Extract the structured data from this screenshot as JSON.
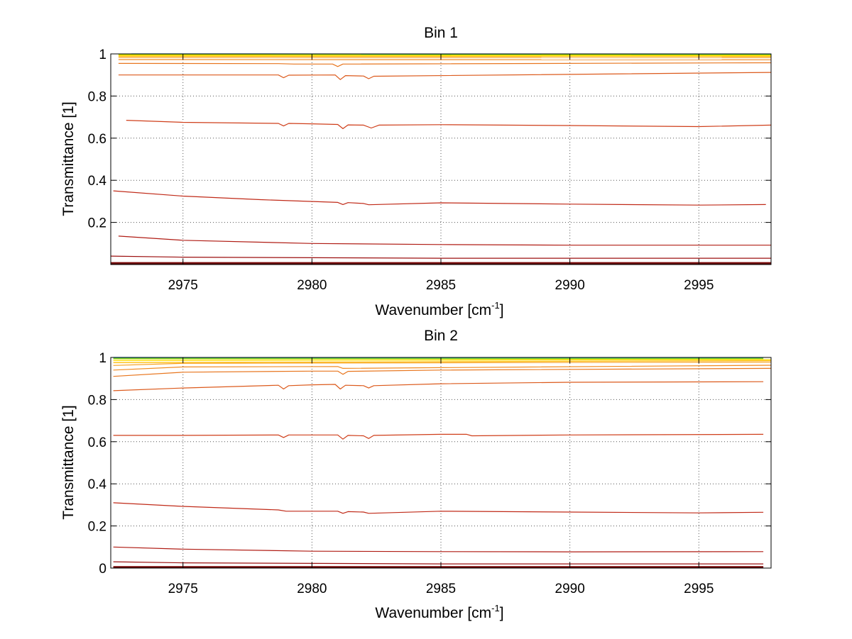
{
  "chart_data": [
    {
      "type": "line",
      "title": "Bin 1",
      "xlabel": "Wavenumber [cm",
      "xlabel_sup": "-1",
      "xlabel_close": "]",
      "ylabel": "Transmittance [1]",
      "xlim": [
        2972.2,
        2997.8
      ],
      "ylim": [
        0.0,
        1.0
      ],
      "x_ticks": [
        2975,
        2980,
        2985,
        2990,
        2995
      ],
      "y_ticks": [
        0.2,
        0.4,
        0.6,
        0.8,
        1
      ],
      "grid": true,
      "series": [
        {
          "color": "#00aaff",
          "x": [
            2973.0,
            2977.0,
            2997.8
          ],
          "y": [
            1.0,
            1.0,
            0.999
          ]
        },
        {
          "color": "#33cc66",
          "x": [
            2972.5,
            2997.8
          ],
          "y": [
            0.998,
            0.997
          ]
        },
        {
          "color": "#ccdd00",
          "x": [
            2972.5,
            2997.8
          ],
          "y": [
            0.996,
            0.995
          ]
        },
        {
          "color": "#ffdd00",
          "x": [
            2972.5,
            2997.8
          ],
          "y": [
            0.993,
            0.992
          ]
        },
        {
          "color": "#ffbb00",
          "x": [
            2972.5,
            2997.8
          ],
          "y": [
            0.989,
            0.988
          ]
        },
        {
          "color": "#f6a020",
          "x": [
            2972.5,
            2997.8
          ],
          "y": [
            0.983,
            0.982
          ]
        },
        {
          "color": "#f08a20",
          "x": [
            2972.5,
            2997.8
          ],
          "y": [
            0.973,
            0.972
          ]
        },
        {
          "color": "#e8761e",
          "x": [
            2972.5,
            2978.7,
            2979.3,
            2980.8,
            2981.0,
            2981.2,
            2997.8
          ],
          "y": [
            0.955,
            0.954,
            0.952,
            0.952,
            0.94,
            0.952,
            0.958
          ]
        },
        {
          "color": "#dc5a1c",
          "x": [
            2972.5,
            2978.7,
            2978.9,
            2979.1,
            2980.9,
            2981.1,
            2981.3,
            2982.0,
            2982.2,
            2982.4,
            2997.8
          ],
          "y": [
            0.9,
            0.9,
            0.887,
            0.899,
            0.9,
            0.878,
            0.897,
            0.895,
            0.882,
            0.894,
            0.912
          ]
        },
        {
          "color": "#cf3e1a",
          "x": [
            2972.8,
            2975,
            2978.7,
            2978.9,
            2979.1,
            2980,
            2981.0,
            2981.2,
            2981.4,
            2982.0,
            2982.3,
            2982.6,
            2985,
            2990,
            2995,
            2997.8
          ],
          "y": [
            0.685,
            0.675,
            0.67,
            0.658,
            0.67,
            0.668,
            0.665,
            0.645,
            0.663,
            0.662,
            0.648,
            0.662,
            0.664,
            0.66,
            0.655,
            0.662
          ]
        },
        {
          "color": "#c02a18",
          "x": [
            2972.3,
            2975,
            2978,
            2981.0,
            2981.2,
            2981.4,
            2982.0,
            2982.2,
            2985,
            2990,
            2995,
            2997.6
          ],
          "y": [
            0.35,
            0.325,
            0.308,
            0.295,
            0.285,
            0.294,
            0.29,
            0.284,
            0.293,
            0.287,
            0.282,
            0.285
          ]
        },
        {
          "color": "#b01c14",
          "x": [
            2972.5,
            2975,
            2980,
            2985,
            2990,
            2997.8
          ],
          "y": [
            0.135,
            0.115,
            0.1,
            0.095,
            0.092,
            0.092
          ]
        },
        {
          "color": "#9c1010",
          "x": [
            2972.2,
            2975,
            2985,
            2997.8
          ],
          "y": [
            0.04,
            0.035,
            0.03,
            0.03
          ]
        },
        {
          "color": "#7a0606",
          "x": [
            2972.2,
            2997.8
          ],
          "y": [
            0.008,
            0.008
          ]
        },
        {
          "color": "#600000",
          "x": [
            2972.2,
            2997.8
          ],
          "y": [
            0.003,
            0.003
          ]
        }
      ]
    },
    {
      "type": "line",
      "title": "Bin 2",
      "xlabel": "Wavenumber [cm",
      "xlabel_sup": "-1",
      "xlabel_close": "]",
      "ylabel": "Transmittance [1]",
      "xlim": [
        2972.2,
        2997.8
      ],
      "ylim": [
        0.0,
        1.0
      ],
      "x_ticks": [
        2975,
        2980,
        2985,
        2990,
        2995
      ],
      "y_ticks": [
        0,
        0.2,
        0.4,
        0.6,
        0.8,
        1
      ],
      "grid": true,
      "series": [
        {
          "color": "#00aaff",
          "x": [
            2972.3,
            2980,
            2997.5
          ],
          "y": [
            1.0,
            0.999,
            0.999
          ]
        },
        {
          "color": "#33cc66",
          "x": [
            2972.3,
            2997.5
          ],
          "y": [
            0.996,
            0.996
          ]
        },
        {
          "color": "#ccdd00",
          "x": [
            2972.3,
            2997.5
          ],
          "y": [
            0.993,
            0.993
          ]
        },
        {
          "color": "#ffdd00",
          "x": [
            2972.3,
            2997.8
          ],
          "y": [
            0.985,
            0.99
          ]
        },
        {
          "color": "#ffbb00",
          "x": [
            2972.3,
            2997.8
          ],
          "y": [
            0.975,
            0.985
          ]
        },
        {
          "color": "#f6a020",
          "x": [
            2972.3,
            2975,
            2997.8
          ],
          "y": [
            0.962,
            0.972,
            0.978
          ]
        },
        {
          "color": "#f08a20",
          "x": [
            2972.3,
            2975,
            2981.0,
            2981.2,
            2997.8
          ],
          "y": [
            0.94,
            0.955,
            0.957,
            0.948,
            0.963
          ]
        },
        {
          "color": "#e8761e",
          "x": [
            2972.3,
            2975,
            2980,
            2981.0,
            2981.2,
            2981.4,
            2985,
            2997.8
          ],
          "y": [
            0.91,
            0.93,
            0.935,
            0.935,
            0.92,
            0.934,
            0.94,
            0.948
          ]
        },
        {
          "color": "#dc5a1c",
          "x": [
            2972.3,
            2975,
            2978.7,
            2978.9,
            2979.1,
            2980,
            2980.9,
            2981.1,
            2981.3,
            2982.0,
            2982.2,
            2982.4,
            2985,
            2990,
            2997.5
          ],
          "y": [
            0.842,
            0.855,
            0.868,
            0.85,
            0.866,
            0.87,
            0.872,
            0.85,
            0.868,
            0.866,
            0.855,
            0.866,
            0.875,
            0.882,
            0.885
          ]
        },
        {
          "color": "#cf3e1a",
          "x": [
            2972.3,
            2975,
            2978.7,
            2978.9,
            2979.1,
            2981.0,
            2981.2,
            2981.4,
            2982.0,
            2982.2,
            2982.4,
            2985,
            2986,
            2986.2,
            2990,
            2997.5
          ],
          "y": [
            0.63,
            0.63,
            0.632,
            0.62,
            0.632,
            0.632,
            0.612,
            0.63,
            0.628,
            0.615,
            0.63,
            0.635,
            0.635,
            0.628,
            0.632,
            0.635
          ]
        },
        {
          "color": "#c02a18",
          "x": [
            2972.3,
            2975,
            2978.7,
            2979.0,
            2981.0,
            2981.2,
            2981.4,
            2982.0,
            2982.2,
            2985,
            2990,
            2995,
            2997.5
          ],
          "y": [
            0.31,
            0.293,
            0.276,
            0.27,
            0.27,
            0.26,
            0.268,
            0.266,
            0.26,
            0.27,
            0.266,
            0.262,
            0.265
          ]
        },
        {
          "color": "#b01c14",
          "x": [
            2972.3,
            2975,
            2980,
            2985,
            2990,
            2997.5
          ],
          "y": [
            0.1,
            0.09,
            0.08,
            0.078,
            0.077,
            0.078
          ]
        },
        {
          "color": "#9c1010",
          "x": [
            2972.3,
            2975,
            2985,
            2997.5
          ],
          "y": [
            0.03,
            0.025,
            0.02,
            0.02
          ]
        },
        {
          "color": "#7a0606",
          "x": [
            2972.3,
            2997.5
          ],
          "y": [
            0.006,
            0.006
          ]
        },
        {
          "color": "#600000",
          "x": [
            2972.3,
            2997.5
          ],
          "y": [
            0.002,
            0.002
          ]
        }
      ]
    }
  ]
}
